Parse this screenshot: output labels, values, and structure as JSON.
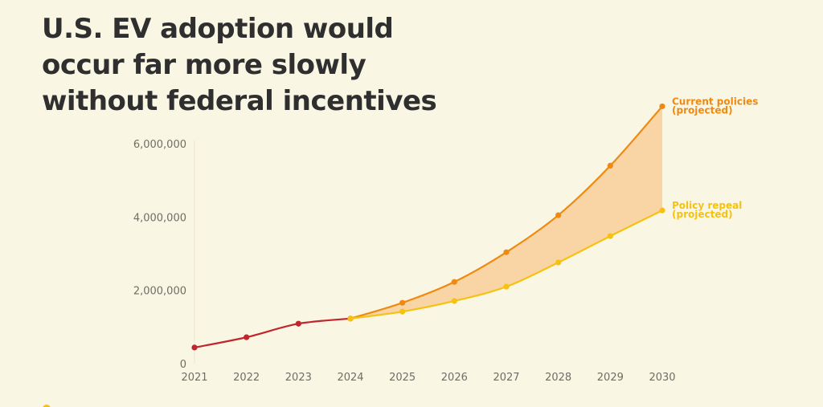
{
  "title_lines": [
    "U.S. EV adoption would",
    "occur far more slowly",
    "without federal incentives"
  ],
  "chart_data": {
    "type": "line",
    "x": [
      2021,
      2022,
      2023,
      2024,
      2025,
      2026,
      2027,
      2028,
      2029,
      2030
    ],
    "ylim": [
      0,
      6500000
    ],
    "yticks": [
      0,
      2000000,
      4000000,
      6000000
    ],
    "ytick_labels": [
      "0",
      "2,000,000",
      "4,000,000",
      "6,000,000"
    ],
    "xtick_labels": [
      "2021",
      "2022",
      "2023",
      "2024",
      "2025",
      "2026",
      "2027",
      "2028",
      "2029",
      "2030"
    ],
    "grid": false,
    "series": [
      {
        "key": "historical",
        "color": "#c0262d",
        "x": [
          2021,
          2022,
          2023,
          2024
        ],
        "values": [
          440000,
          720000,
          1090000,
          1230000
        ]
      },
      {
        "key": "current",
        "name": "Current policies (projected)",
        "label_lines": [
          "Current policies",
          "(projected)"
        ],
        "color": "#ee8a12",
        "x": [
          2024,
          2025,
          2026,
          2027,
          2028,
          2029,
          2030
        ],
        "values": [
          1230000,
          1660000,
          2230000,
          3040000,
          4050000,
          5400000,
          7020000
        ]
      },
      {
        "key": "repeal",
        "name": "Policy repeal (projected)",
        "label_lines": [
          "Policy repeal",
          "(projected)"
        ],
        "color": "#f5c211",
        "x": [
          2024,
          2025,
          2026,
          2027,
          2028,
          2029,
          2030
        ],
        "values": [
          1230000,
          1420000,
          1710000,
          2100000,
          2760000,
          3480000,
          4180000
        ]
      }
    ],
    "fill_between": {
      "upper": "current",
      "lower": "repeal",
      "color": "#f8cf9a"
    }
  }
}
